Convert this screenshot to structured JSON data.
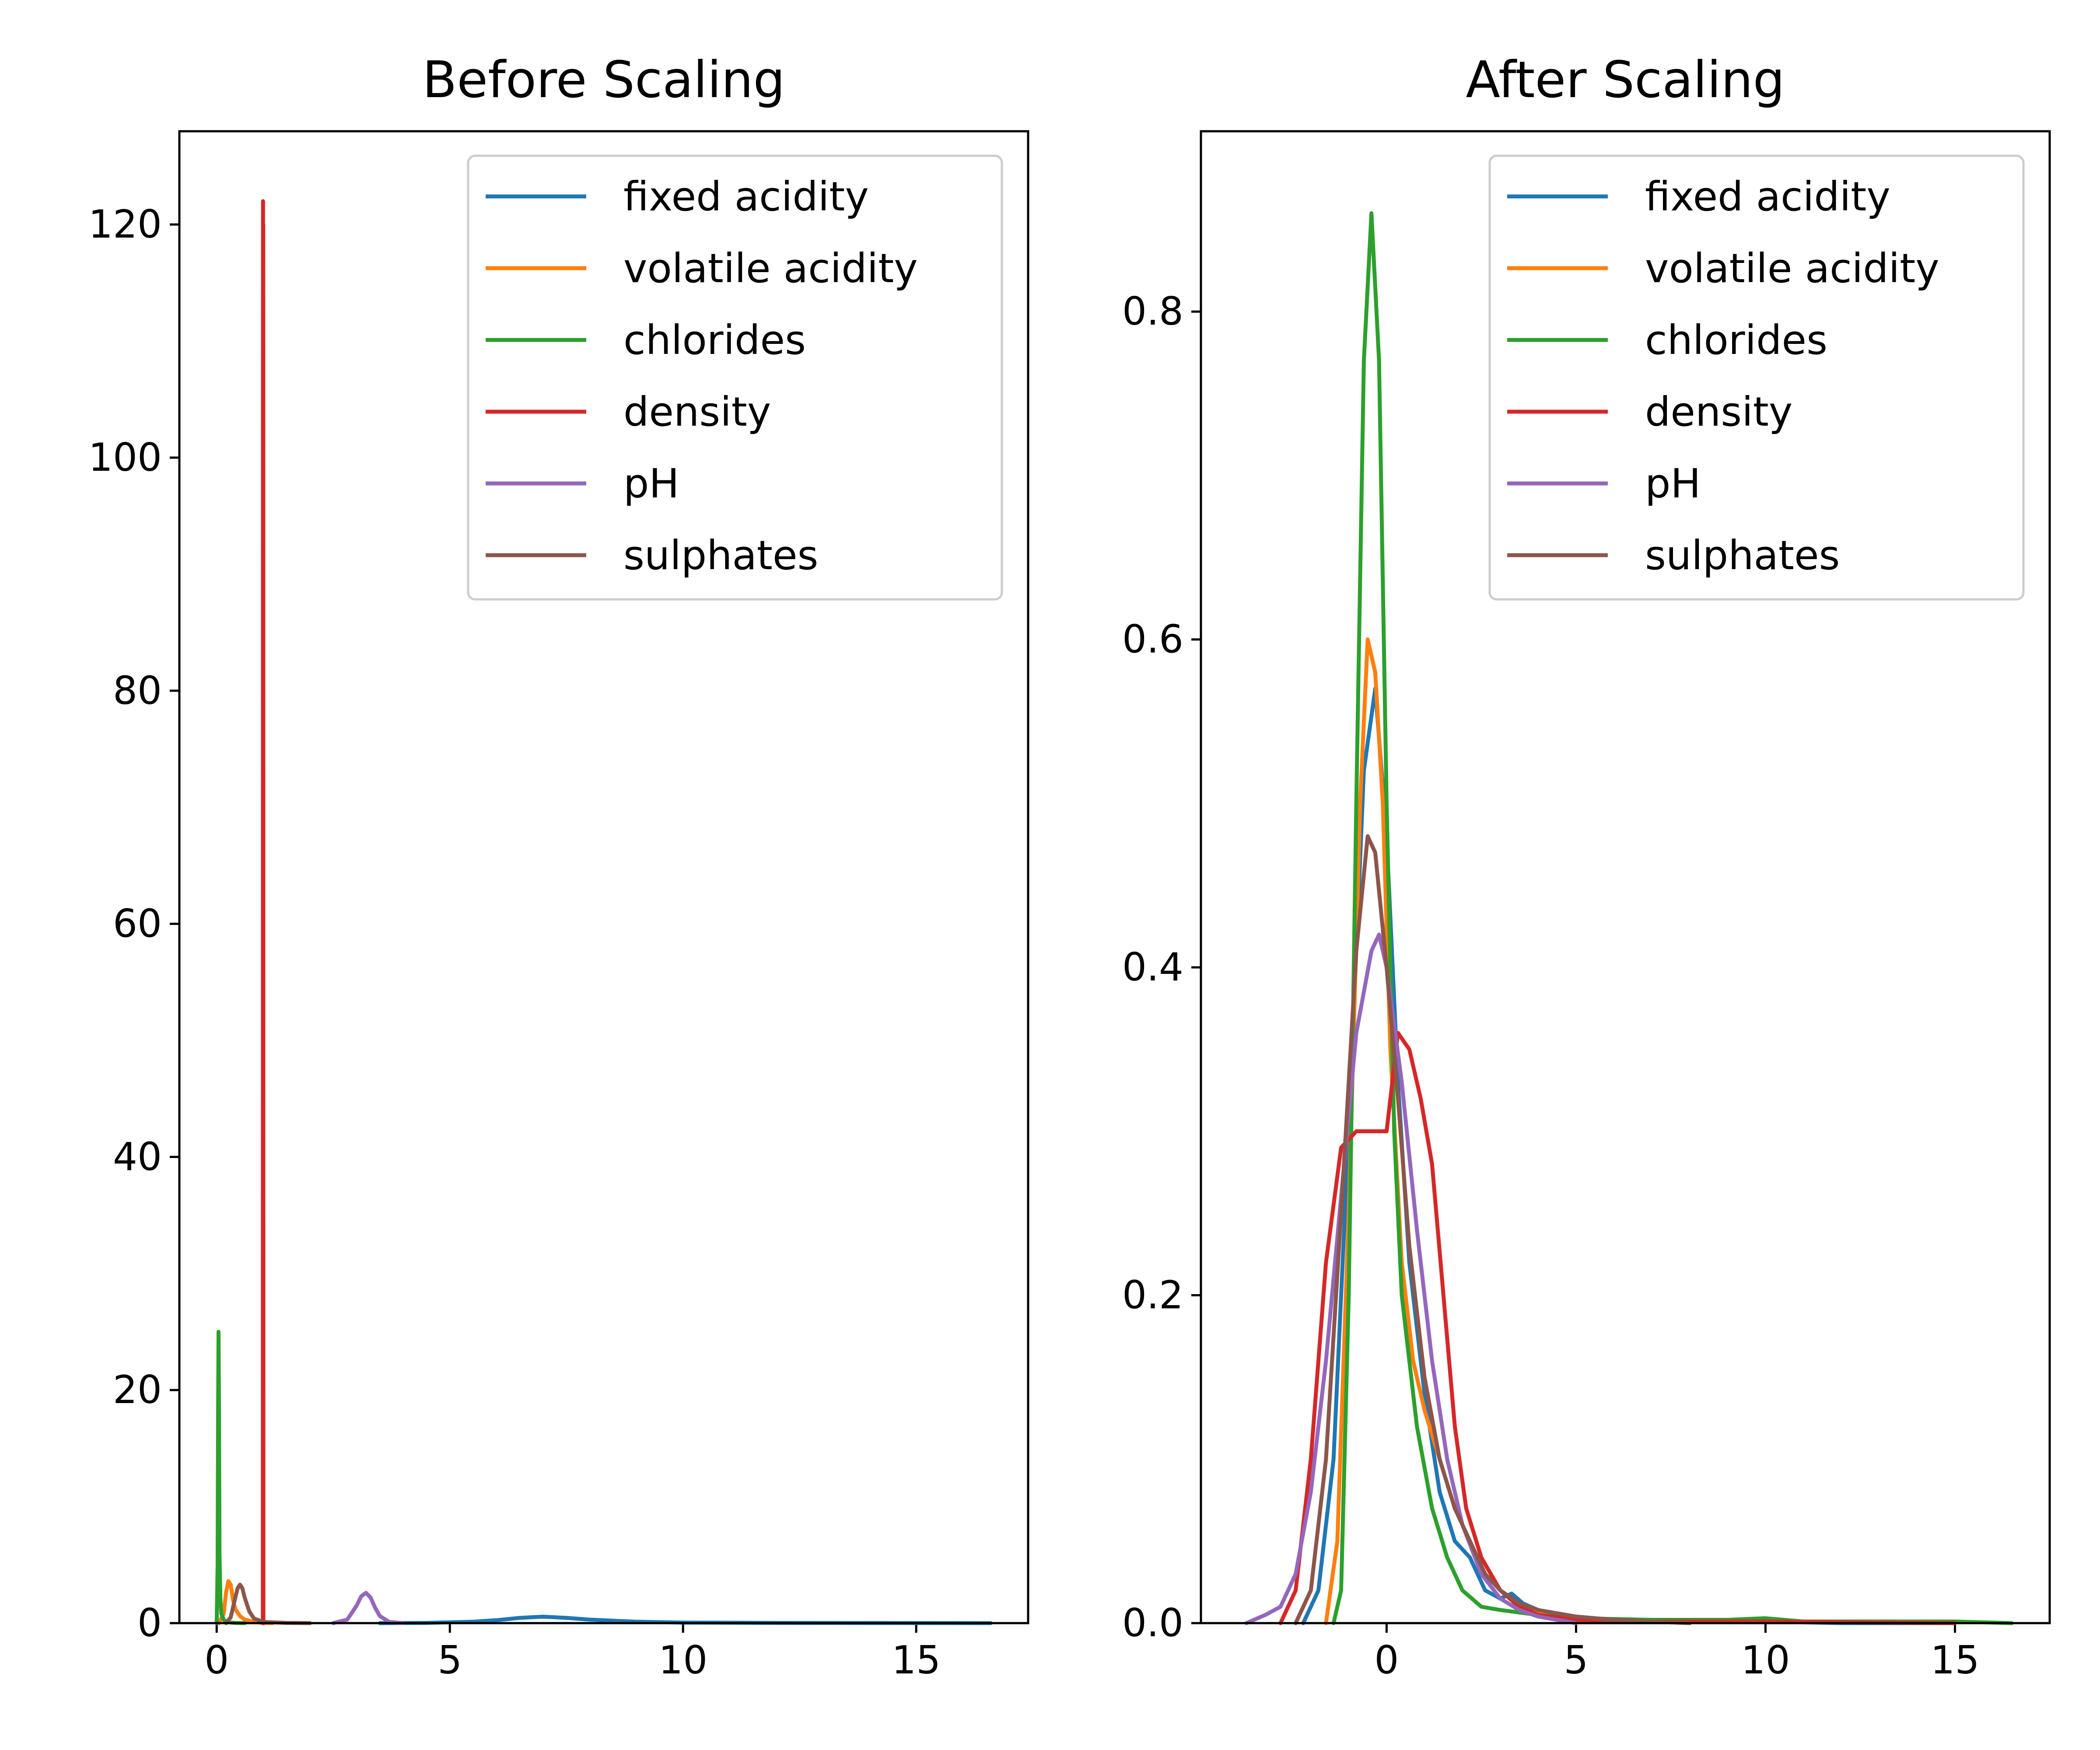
{
  "colors": {
    "fixed_acidity": "#1f77b4",
    "volatile_acidity": "#ff7f0e",
    "chlorides": "#2ca02c",
    "density": "#d62728",
    "pH": "#9467bd",
    "sulphates": "#8c564b"
  },
  "chart_data": [
    {
      "type": "line",
      "title": "Before Scaling",
      "xlabel": "",
      "ylabel": "",
      "xlim": [
        -0.8,
        17.4
      ],
      "ylim": [
        0,
        128
      ],
      "xticks": [
        0,
        5,
        10,
        15
      ],
      "yticks": [
        0,
        20,
        40,
        60,
        80,
        100,
        120
      ],
      "legend": "top-right",
      "grid": false,
      "series": [
        {
          "name": "fixed acidity",
          "color": "#1f77b4",
          "x": [
            3.5,
            4.5,
            5.5,
            6.0,
            6.5,
            7.0,
            7.5,
            8.0,
            9.0,
            10.0,
            12.0,
            14.0,
            16.6
          ],
          "y": [
            0,
            0.02,
            0.12,
            0.25,
            0.45,
            0.55,
            0.45,
            0.3,
            0.12,
            0.05,
            0.02,
            0.01,
            0
          ]
        },
        {
          "name": "volatile acidity",
          "color": "#ff7f0e",
          "x": [
            0.05,
            0.15,
            0.2,
            0.25,
            0.3,
            0.35,
            0.4,
            0.5,
            0.6,
            0.8,
            1.0,
            1.2
          ],
          "y": [
            0,
            0.8,
            2.6,
            3.6,
            3.3,
            2.0,
            1.2,
            0.6,
            0.3,
            0.1,
            0.02,
            0
          ]
        },
        {
          "name": "chlorides",
          "color": "#2ca02c",
          "x": [
            0.0,
            0.02,
            0.03,
            0.04,
            0.05,
            0.06,
            0.08,
            0.1,
            0.15,
            0.2,
            0.3,
            0.4,
            0.6
          ],
          "y": [
            0,
            5,
            18,
            25,
            18,
            6,
            2,
            0.8,
            0.3,
            0.1,
            0.05,
            0.02,
            0
          ]
        },
        {
          "name": "density",
          "color": "#d62728",
          "x": [
            0.985,
            0.99,
            0.992,
            0.994,
            0.996,
            0.998,
            1.0,
            1.002,
            1.005
          ],
          "y": [
            0,
            0,
            100,
            122,
            110,
            120,
            100,
            0,
            0
          ]
        },
        {
          "name": "pH",
          "color": "#9467bd",
          "x": [
            2.5,
            2.8,
            3.0,
            3.1,
            3.2,
            3.3,
            3.4,
            3.5,
            3.7,
            4.0
          ],
          "y": [
            0,
            0.3,
            1.5,
            2.3,
            2.6,
            2.2,
            1.3,
            0.6,
            0.1,
            0
          ]
        },
        {
          "name": "sulphates",
          "color": "#8c564b",
          "x": [
            0.2,
            0.3,
            0.4,
            0.45,
            0.5,
            0.55,
            0.6,
            0.7,
            0.8,
            1.0,
            1.5,
            2.0
          ],
          "y": [
            0,
            0.5,
            2.2,
            3.0,
            3.3,
            3.0,
            2.2,
            1.0,
            0.4,
            0.1,
            0.02,
            0
          ]
        }
      ]
    },
    {
      "type": "line",
      "title": "After Scaling",
      "xlabel": "",
      "ylabel": "",
      "xlim": [
        -4.9,
        17.5
      ],
      "ylim": [
        0,
        0.91
      ],
      "xticks": [
        0,
        5,
        10,
        15
      ],
      "yticks": [
        0.0,
        0.2,
        0.4,
        0.6,
        0.8
      ],
      "legend": "top-right",
      "grid": false,
      "series": [
        {
          "name": "fixed acidity",
          "color": "#1f77b4",
          "x": [
            -2.2,
            -1.8,
            -1.4,
            -1.0,
            -0.6,
            -0.3,
            0.0,
            0.3,
            0.6,
            1.0,
            1.4,
            1.8,
            2.2,
            2.6,
            3.0,
            3.3,
            3.6,
            4.0,
            4.5,
            5.0,
            6.0,
            8.0,
            10.0,
            12.0,
            15.0
          ],
          "y": [
            0,
            0.02,
            0.1,
            0.3,
            0.52,
            0.57,
            0.48,
            0.33,
            0.22,
            0.14,
            0.08,
            0.05,
            0.04,
            0.02,
            0.015,
            0.018,
            0.012,
            0.008,
            0.005,
            0.003,
            0.002,
            0.001,
            0.001,
            0.0,
            0.0
          ]
        },
        {
          "name": "volatile acidity",
          "color": "#ff7f0e",
          "x": [
            -1.6,
            -1.3,
            -1.0,
            -0.7,
            -0.5,
            -0.3,
            -0.1,
            0.1,
            0.4,
            0.7,
            1.0,
            1.4,
            1.8,
            2.2,
            2.6,
            3.0,
            3.5,
            4.0,
            5.0,
            6.0,
            8.0
          ],
          "y": [
            0,
            0.05,
            0.25,
            0.5,
            0.6,
            0.58,
            0.5,
            0.35,
            0.22,
            0.16,
            0.13,
            0.1,
            0.07,
            0.05,
            0.03,
            0.02,
            0.01,
            0.006,
            0.003,
            0.002,
            0.0
          ]
        },
        {
          "name": "chlorides",
          "color": "#2ca02c",
          "x": [
            -1.4,
            -1.2,
            -1.0,
            -0.8,
            -0.6,
            -0.4,
            -0.2,
            0.0,
            0.2,
            0.4,
            0.8,
            1.2,
            1.6,
            2.0,
            2.5,
            3.0,
            4.0,
            5.0,
            7.0,
            9.0,
            10.0,
            11.0,
            13.0,
            15.0,
            16.5
          ],
          "y": [
            0,
            0.02,
            0.2,
            0.5,
            0.77,
            0.86,
            0.77,
            0.5,
            0.3,
            0.2,
            0.12,
            0.07,
            0.04,
            0.02,
            0.01,
            0.008,
            0.005,
            0.003,
            0.002,
            0.002,
            0.003,
            0.001,
            0.001,
            0.001,
            0.0
          ]
        },
        {
          "name": "density",
          "color": "#d62728",
          "x": [
            -2.8,
            -2.4,
            -2.0,
            -1.6,
            -1.2,
            -0.8,
            -0.4,
            0.0,
            0.3,
            0.6,
            0.9,
            1.2,
            1.5,
            1.8,
            2.1,
            2.5,
            3.0,
            3.5,
            4.0,
            5.0,
            7.0,
            10.0,
            15.0
          ],
          "y": [
            0,
            0.02,
            0.1,
            0.22,
            0.29,
            0.3,
            0.3,
            0.3,
            0.36,
            0.35,
            0.32,
            0.28,
            0.2,
            0.12,
            0.07,
            0.04,
            0.02,
            0.01,
            0.005,
            0.002,
            0.001,
            0.001,
            0.0
          ]
        },
        {
          "name": "pH",
          "color": "#9467bd",
          "x": [
            -3.7,
            -3.2,
            -2.8,
            -2.4,
            -2.0,
            -1.6,
            -1.2,
            -0.8,
            -0.4,
            -0.2,
            0.0,
            0.4,
            0.8,
            1.2,
            1.6,
            2.0,
            2.5,
            3.0,
            3.5,
            4.0,
            5.0
          ],
          "y": [
            0,
            0.005,
            0.01,
            0.03,
            0.08,
            0.16,
            0.26,
            0.36,
            0.41,
            0.42,
            0.4,
            0.33,
            0.24,
            0.16,
            0.1,
            0.06,
            0.03,
            0.015,
            0.008,
            0.004,
            0.0
          ]
        },
        {
          "name": "sulphates",
          "color": "#8c564b",
          "x": [
            -2.4,
            -2.0,
            -1.6,
            -1.2,
            -0.8,
            -0.5,
            -0.3,
            0.0,
            0.3,
            0.6,
            1.0,
            1.4,
            1.8,
            2.2,
            2.6,
            3.0,
            3.5,
            4.0,
            5.0,
            6.0,
            8.0
          ],
          "y": [
            0,
            0.02,
            0.1,
            0.25,
            0.41,
            0.48,
            0.47,
            0.4,
            0.32,
            0.23,
            0.15,
            0.1,
            0.07,
            0.05,
            0.03,
            0.02,
            0.012,
            0.008,
            0.004,
            0.002,
            0.0
          ]
        }
      ]
    }
  ]
}
